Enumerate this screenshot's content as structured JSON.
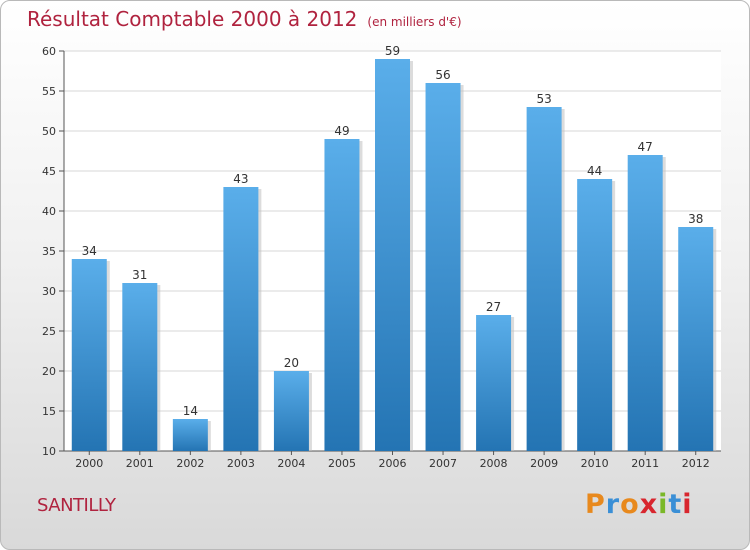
{
  "header": {
    "title": "Résultat Comptable 2000 à 2012",
    "unit": "(en milliers d'€)"
  },
  "footer": {
    "commune": "SANTILLY",
    "logo": "Proxiti",
    "logo_colors": [
      "#e8891d",
      "#3a8fd6",
      "#e8891d",
      "#d8262e",
      "#7ab828",
      "#3a8fd6",
      "#d8262e"
    ]
  },
  "chart_data": {
    "type": "bar",
    "title": "Résultat Comptable 2000 à 2012",
    "subtitle": "(en milliers d'€)",
    "categories": [
      "2000",
      "2001",
      "2002",
      "2003",
      "2004",
      "2005",
      "2006",
      "2007",
      "2008",
      "2009",
      "2010",
      "2011",
      "2012"
    ],
    "values": [
      34,
      31,
      14,
      43,
      20,
      49,
      59,
      56,
      27,
      53,
      44,
      47,
      38
    ],
    "ylim": [
      10,
      60
    ],
    "yticks": [
      10,
      15,
      20,
      25,
      30,
      35,
      40,
      45,
      50,
      55,
      60
    ],
    "grid": true,
    "colors": {
      "bar_top": "#5aaeea",
      "bar_bottom": "#2474b3",
      "title": "#b0233f",
      "grid": "#d7d7d7"
    }
  }
}
